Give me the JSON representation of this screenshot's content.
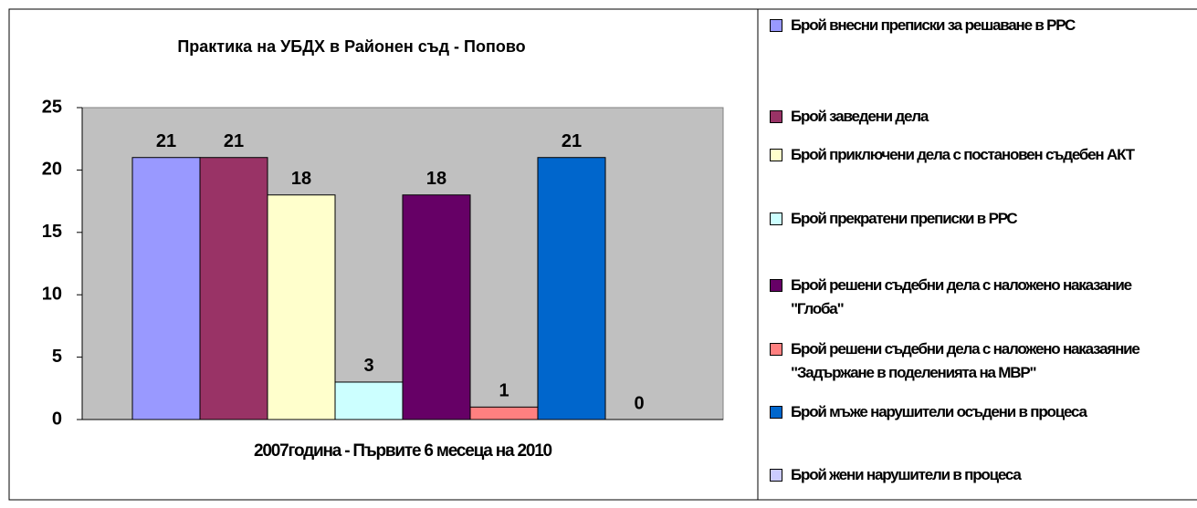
{
  "chart_data": {
    "type": "bar",
    "title": "Практика на УБДХ в Районен съд - Попово",
    "categories": [
      "2007година - Първите 6 месеца на 2010"
    ],
    "series": [
      {
        "name": "Брой внесни преписки за решаване в РРС",
        "color": "#9999ff",
        "values": [
          21
        ]
      },
      {
        "name": "Брой заведени дела",
        "color": "#993366",
        "values": [
          21
        ]
      },
      {
        "name": "Брой приключени дела с постановен съдебен АКТ",
        "color": "#ffffcc",
        "values": [
          18
        ]
      },
      {
        "name": "Брой прекратени преписки в РРС",
        "color": "#ccffff",
        "values": [
          3
        ]
      },
      {
        "name": "Брой решени съдебни дела с наложено наказание \"Глоба\"",
        "color": "#660066",
        "values": [
          18
        ]
      },
      {
        "name": "Брой решени съдебни дела с наложено наказаяние \"Задържане в поделенията на МВР\"",
        "color": "#ff8080",
        "values": [
          1
        ]
      },
      {
        "name": "Брой мъже нарушители осъдени в процеса",
        "color": "#0066cc",
        "values": [
          21
        ]
      },
      {
        "name": "Брой жени нарушители в процеса",
        "color": "#ccccff",
        "values": [
          0
        ]
      }
    ],
    "ylim": [
      0,
      25
    ],
    "yticks": [
      0,
      5,
      10,
      15,
      20,
      25
    ],
    "grid": false,
    "plot_background": "#c0c0c0",
    "legend": "right"
  }
}
